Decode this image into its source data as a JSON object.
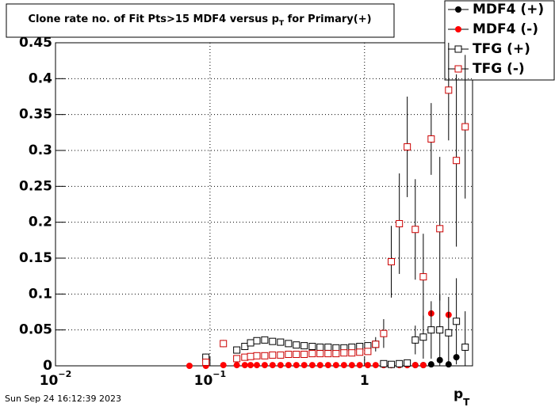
{
  "chart_data": {
    "type": "scatter",
    "title": "Clone rate no. of Fit Pts>15 MDF4 versus p",
    "title_subscript": "T",
    "title_end": " for Primary(+)",
    "x_label": "p",
    "x_label_subscript": "T",
    "timestamp": "Sun Sep 24 16:12:39 2023",
    "log_x": true,
    "grid": true,
    "legend_position": "top-right",
    "xlim": [
      0.01,
      5
    ],
    "ylim": [
      0,
      0.45
    ],
    "xticks": [
      {
        "value": 0.01,
        "label": "10",
        "exponent": "−2"
      },
      {
        "value": 0.1,
        "label": "10",
        "exponent": "−1"
      },
      1
    ],
    "yticks": [
      0,
      0.05,
      0.1,
      0.15,
      0.2,
      0.25,
      0.3,
      0.35,
      0.4,
      0.45
    ],
    "x": [
      0.0736,
      0.094,
      0.122,
      0.149,
      0.168,
      0.183,
      0.201,
      0.226,
      0.254,
      0.286,
      0.322,
      0.362,
      0.407,
      0.459,
      0.516,
      0.581,
      0.654,
      0.736,
      0.828,
      0.931,
      1.05,
      1.18,
      1.33,
      1.49,
      1.68,
      1.89,
      2.13,
      2.4,
      2.7,
      3.07,
      3.5,
      3.93,
      4.48
    ],
    "series": [
      {
        "name": "MDF4 (+)",
        "color": "#000000",
        "marker": "circle",
        "values": [
          null,
          null,
          null,
          null,
          null,
          null,
          null,
          null,
          null,
          null,
          null,
          null,
          null,
          null,
          null,
          null,
          null,
          null,
          null,
          null,
          null,
          null,
          0.001,
          0.001,
          0.001,
          0.001,
          0.001,
          0.001,
          0.002,
          0.008,
          0.002,
          0.012,
          null
        ]
      },
      {
        "name": "MDF4 (-)",
        "color": "#ff0000",
        "marker": "circle",
        "values": [
          0,
          0,
          0.001,
          0.001,
          0.001,
          0.001,
          0.001,
          0.001,
          0.001,
          0.001,
          0.001,
          0.001,
          0.001,
          0.001,
          0.001,
          0.001,
          0.001,
          0.001,
          0.001,
          0.001,
          0.001,
          0.001,
          0.001,
          0.001,
          0.001,
          0.001,
          0.001,
          0.001,
          0.073,
          null,
          0.071,
          null,
          null
        ]
      },
      {
        "name": "TFG (+)",
        "color": "#000000",
        "marker": "square-open",
        "values": [
          null,
          0.012,
          null,
          0.022,
          0.027,
          0.032,
          0.035,
          0.036,
          0.034,
          0.033,
          0.031,
          0.029,
          0.028,
          0.027,
          0.026,
          0.026,
          0.025,
          0.025,
          0.026,
          0.027,
          0.028,
          0.03,
          0.003,
          0.002,
          0.003,
          0.004,
          0.036,
          0.04,
          0.05,
          0.05,
          0.046,
          0.062,
          0.026
        ],
        "errors": [
          null,
          0.005,
          null,
          0.004,
          0.003,
          0.003,
          0.003,
          0.003,
          0.003,
          0.003,
          0.003,
          0.003,
          0.003,
          0.003,
          0.003,
          0.003,
          0.003,
          0.003,
          0.003,
          0.003,
          0.004,
          0.005,
          0.003,
          0.003,
          0.003,
          0.004,
          0.02,
          0.03,
          0.04,
          0.05,
          0.05,
          0.06,
          0.05
        ]
      },
      {
        "name": "TFG (-)",
        "color": "#cc0000",
        "marker": "square-open",
        "values": [
          null,
          0.005,
          0.031,
          0.01,
          0.012,
          0.013,
          0.014,
          0.014,
          0.015,
          0.015,
          0.016,
          0.016,
          0.016,
          0.017,
          0.017,
          0.017,
          0.017,
          0.018,
          0.018,
          0.019,
          0.02,
          0.03,
          0.045,
          0.145,
          0.198,
          0.305,
          0.19,
          0.124,
          0.316,
          0.191,
          0.384,
          0.286,
          0.333
        ],
        "errors": [
          null,
          0.005,
          0.005,
          0.003,
          0.003,
          0.003,
          0.003,
          0.003,
          0.003,
          0.003,
          0.003,
          0.003,
          0.003,
          0.003,
          0.003,
          0.003,
          0.003,
          0.003,
          0.003,
          0.003,
          0.004,
          0.01,
          0.02,
          0.05,
          0.07,
          0.07,
          0.07,
          0.06,
          0.05,
          0.1,
          0.07,
          0.12,
          0.1
        ]
      }
    ]
  }
}
